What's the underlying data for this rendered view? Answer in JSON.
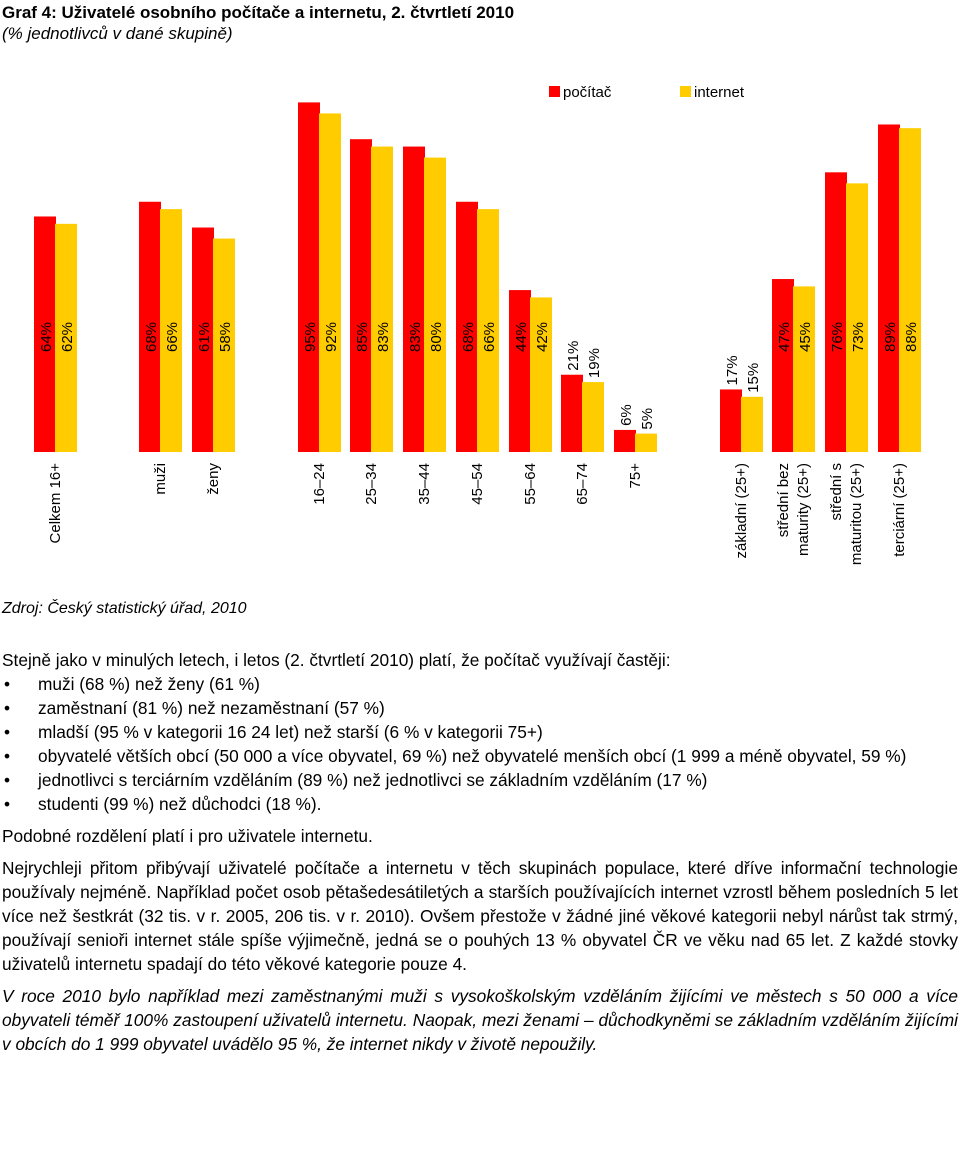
{
  "chart_data": {
    "type": "bar",
    "title": "Graf 4: Uživatelé osobního počítače a internetu, 2. čtvrtletí 2010",
    "subtitle": "(% jednotlivců v dané skupině)",
    "categories": [
      "Celkem 16+",
      "muži",
      "ženy",
      "16–24",
      "25–34",
      "35–44",
      "45–54",
      "55–64",
      "65–74",
      "75+",
      "základní (25+)",
      "střední bez maturity (25+)",
      "střední s maturitou (25+)",
      "terciární (25+)"
    ],
    "category_lines": [
      [
        "Celkem 16+"
      ],
      [
        "muži"
      ],
      [
        "ženy"
      ],
      [
        "16–24"
      ],
      [
        "25–34"
      ],
      [
        "35–44"
      ],
      [
        "45–54"
      ],
      [
        "55–64"
      ],
      [
        "65–74"
      ],
      [
        "75+"
      ],
      [
        "základní (25+)"
      ],
      [
        "střední bez",
        "maturity (25+)"
      ],
      [
        "střední s",
        "maturitou (25+)"
      ],
      [
        "terciární (25+)"
      ]
    ],
    "series": [
      {
        "name": "počítač",
        "color": "#ff0000",
        "values": [
          64,
          68,
          61,
          95,
          85,
          83,
          68,
          44,
          21,
          6,
          17,
          47,
          76,
          89
        ],
        "labels": [
          "64%",
          "68%",
          "61%",
          "95%",
          "85%",
          "83%",
          "68%",
          "44%",
          "21%",
          "6%",
          "17%",
          "47%",
          "76%",
          "89%"
        ]
      },
      {
        "name": "internet",
        "color": "#ffcc00",
        "values": [
          62,
          66,
          58,
          92,
          83,
          80,
          66,
          42,
          19,
          5,
          15,
          45,
          73,
          88
        ],
        "labels": [
          "62%",
          "66%",
          "58%",
          "92%",
          "83%",
          "80%",
          "66%",
          "42%",
          "19%",
          "5%",
          "15%",
          "45%",
          "73%",
          "88%"
        ]
      }
    ],
    "ylim": [
      0,
      100
    ],
    "grid": false,
    "legend": "top-right"
  },
  "source": "Zdroj: Český statistický úřad, 2010",
  "text": {
    "intro": "Stejně jako v minulých letech, i letos (2. čtvrtletí 2010) platí, že počítač využívají častěji:",
    "bullets": [
      "muži (68 %) než ženy (61 %)",
      "zaměstnaní (81 %) než nezaměstnaní (57 %)",
      "mladší (95 % v kategorii 16 24 let) než starší (6 % v kategorii 75+)",
      "obyvatelé větších obcí (50 000 a více obyvatel, 69 %) než obyvatelé menších obcí (1 999 a méně obyvatel, 59 %)",
      "jednotlivci s terciárním vzděláním (89 %) než jednotlivci se základním vzděláním (17 %)",
      "studenti (99 %) než důchodci (18 %)."
    ],
    "para2": "Podobné rozdělení platí i pro uživatele internetu.",
    "para3": "Nejrychleji přitom přibývají uživatelé počítače a internetu v těch skupinách populace, které dříve informační technologie používaly nejméně. Například počet osob pětašedesátiletých a starších používajících internet vzrostl během posledních 5 let více než šestkrát (32 tis. v r. 2005, 206 tis. v r. 2010). Ovšem přestože v žádné jiné věkové kategorii nebyl nárůst tak strmý, používají senioři internet stále spíše výjimečně, jedná se o pouhých 13 % obyvatel ČR ve věku nad 65 let. Z každé stovky uživatelů internetu spadají do této věkové kategorie pouze 4.",
    "para4": "V roce 2010 bylo například mezi zaměstnanými muži s vysokoškolským vzděláním žijícími ve městech s 50 000 a více obyvateli téměř 100% zastoupení uživatelů internetu. Naopak, mezi ženami – důchodkyněmi se základním vzděláním žijícími v obcích do 1 999 obyvatel uvádělo 95 %, že internet nikdy v životě nepoužily."
  }
}
